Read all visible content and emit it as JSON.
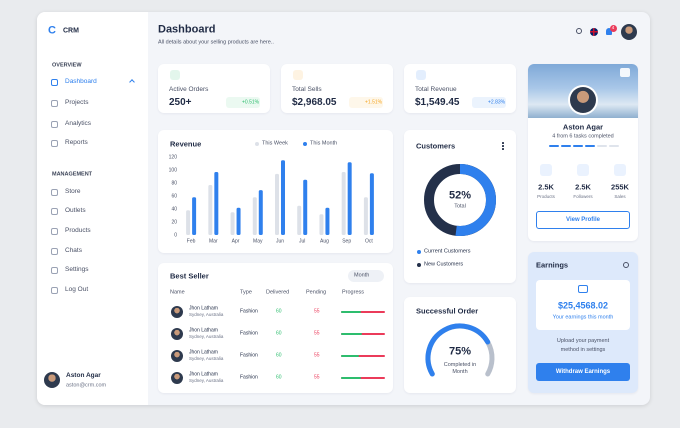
{
  "sidebar": {
    "logo": "C",
    "brand": "CRM",
    "sections": [
      {
        "title": "OVERVIEW",
        "items": [
          "Dashboard",
          "Projects",
          "Analytics",
          "Reports"
        ]
      },
      {
        "title": "MANAGEMENT",
        "items": [
          "Store",
          "Outlets",
          "Products",
          "Chats",
          "Settings",
          "Log Out"
        ]
      }
    ],
    "user": {
      "name": "Aston Agar",
      "email": "aston@crm.com"
    }
  },
  "header": {
    "title": "Dashboard",
    "subtitle": "All details about your selling products are here..",
    "notifications": 4
  },
  "stats": [
    {
      "label": "Active Orders",
      "value": "250+",
      "change": "+0.51%"
    },
    {
      "label": "Total Sells",
      "value": "$2,968.05",
      "change": "+1.51%"
    },
    {
      "label": "Total Revenue",
      "value": "$1,549.45",
      "change": "+2.83%"
    }
  ],
  "revenue": {
    "type": "bar",
    "title": "Revenue",
    "categories": [
      "Feb",
      "Mar",
      "Apr",
      "May",
      "Jun",
      "Jul",
      "Aug",
      "Sep",
      "Oct"
    ],
    "series": [
      {
        "name": "This Week",
        "color": "#dde1e8",
        "values": [
          38,
          77,
          35,
          58,
          94,
          45,
          32,
          97,
          58
        ]
      },
      {
        "name": "This Month",
        "color": "#2f80ed",
        "values": [
          58,
          97,
          42,
          69,
          115,
          85,
          42,
          112,
          95
        ]
      }
    ],
    "ylim": [
      0,
      120
    ],
    "yticks": [
      0,
      20,
      40,
      60,
      80,
      100,
      120
    ]
  },
  "customers": {
    "title": "Customers",
    "percent": {
      "value": 52,
      "label": "52%"
    },
    "center_label": "Total",
    "legend": [
      "Current Customers",
      "New Customers"
    ]
  },
  "successful_order": {
    "title": "Successful Order",
    "percent": {
      "value": 75,
      "label": "75%"
    },
    "caption": "Completed in Month"
  },
  "best_seller": {
    "title": "Best Seller",
    "filter": "Month",
    "columns": [
      "Name",
      "Type",
      "Delivered",
      "Pending",
      "Progress"
    ],
    "rows": [
      {
        "name": "Jhon Latham",
        "location": "Sydney, Australia",
        "type": "Fashion",
        "delivered": "60",
        "pending": "55",
        "progress": 45
      },
      {
        "name": "Jhon Latham",
        "location": "Sydney, Australia",
        "type": "Fashion",
        "delivered": "60",
        "pending": "55",
        "progress": 48
      },
      {
        "name": "Jhon Latham",
        "location": "Sydney, Australia",
        "type": "Fashion",
        "delivered": "60",
        "pending": "55",
        "progress": 40
      },
      {
        "name": "Jhon Latham",
        "location": "Sydney, Australia",
        "type": "Fashion",
        "delivered": "60",
        "pending": "55",
        "progress": 45
      }
    ]
  },
  "profile": {
    "name": "Aston Agar",
    "tasks": "4 from 6 tasks completed",
    "stats": [
      {
        "value": "2.5K",
        "label": "Products"
      },
      {
        "value": "2.5K",
        "label": "Followers"
      },
      {
        "value": "255K",
        "label": "Sales"
      }
    ],
    "button": "View Profile"
  },
  "earnings": {
    "title": "Earnings",
    "amount": "$25,4568.02",
    "caption": "Your earnings this month",
    "note": "Upload your payment method in settings",
    "button": "Withdraw Earnings"
  }
}
